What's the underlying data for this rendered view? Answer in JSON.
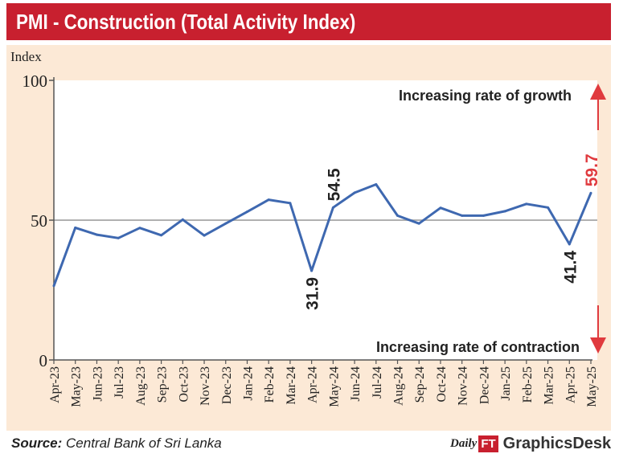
{
  "header": {
    "title": "PMI - Construction (Total Activity Index)"
  },
  "colors": {
    "header_bg": "#c8202f",
    "frame_bg": "#fce9d6",
    "line": "#3e68b0",
    "arrow": "#e03a3e",
    "highlight_label": "#e03a3e"
  },
  "footer": {
    "source_label": "Source:",
    "source_text": "Central Bank of Sri Lanka",
    "brand_daily": "Daily",
    "brand_ft": "FT",
    "brand_desk": "GraphicsDesk"
  },
  "chart_data": {
    "type": "line",
    "ylabel": "Index",
    "ylim": [
      0,
      100
    ],
    "yticks": [
      0,
      50,
      100
    ],
    "reference_line": 50,
    "grid": false,
    "categories": [
      "Apr-23",
      "May-23",
      "Jun-23",
      "Jul-23",
      "Aug-23",
      "Sep-23",
      "Oct-23",
      "Nov-23",
      "Dec-23",
      "Jan-24",
      "Feb-24",
      "Mar-24",
      "Apr-24",
      "May-24",
      "Jun-24",
      "Jul-24",
      "Aug-24",
      "Sep-24",
      "Oct-24",
      "Nov-24",
      "Dec-24",
      "Jan-25",
      "Feb-25",
      "Mar-25",
      "Apr-25",
      "May-25"
    ],
    "series": [
      {
        "values": [
          26.5,
          47.3,
          44.8,
          43.6,
          47.2,
          44.6,
          50.2,
          44.5,
          48.8,
          53.0,
          57.3,
          56.1,
          31.9,
          54.5,
          59.8,
          62.8,
          51.6,
          48.8,
          54.4,
          51.6,
          51.6,
          53.2,
          55.8,
          54.5,
          41.4,
          59.7
        ]
      }
    ],
    "data_labels": [
      {
        "index": 12,
        "text": "31.9",
        "position": "below",
        "highlight": false
      },
      {
        "index": 13,
        "text": "54.5",
        "position": "above",
        "highlight": false
      },
      {
        "index": 24,
        "text": "41.4",
        "position": "below",
        "highlight": false
      },
      {
        "index": 25,
        "text": "59.7",
        "position": "above",
        "highlight": true
      }
    ],
    "annotations": {
      "top": "Increasing rate of growth",
      "bottom": "Increasing rate of contraction"
    }
  }
}
